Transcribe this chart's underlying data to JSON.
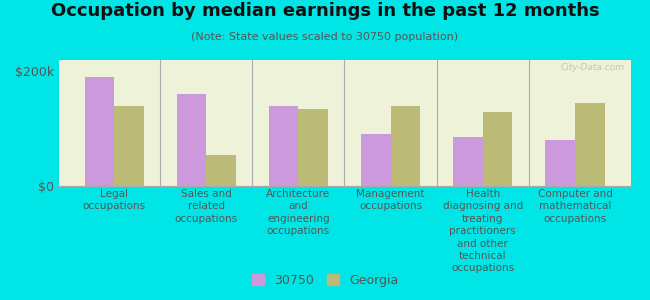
{
  "title": "Occupation by median earnings in the past 12 months",
  "subtitle": "(Note: State values scaled to 30750 population)",
  "background_color": "#00e5e5",
  "plot_bg_color": "#eef2d8",
  "categories": [
    "Legal\noccupations",
    "Sales and\nrelated\noccupations",
    "Architecture\nand\nengineering\noccupations",
    "Management\noccupations",
    "Health\ndiagnosing and\ntreating\npractitioners\nand other\ntechnical\noccupations",
    "Computer and\nmathematical\noccupations"
  ],
  "values_30750": [
    190000,
    160000,
    140000,
    90000,
    85000,
    80000
  ],
  "values_georgia": [
    140000,
    55000,
    135000,
    140000,
    130000,
    145000
  ],
  "color_30750": "#cc99dd",
  "color_georgia": "#bbbb77",
  "ylim": [
    0,
    220000
  ],
  "yticks": [
    0,
    200000
  ],
  "ytick_labels": [
    "$0",
    "$200k"
  ],
  "legend_labels": [
    "30750",
    "Georgia"
  ],
  "watermark": "City-Data.com",
  "title_fontsize": 13,
  "subtitle_fontsize": 8,
  "tick_label_fontsize": 7.5
}
